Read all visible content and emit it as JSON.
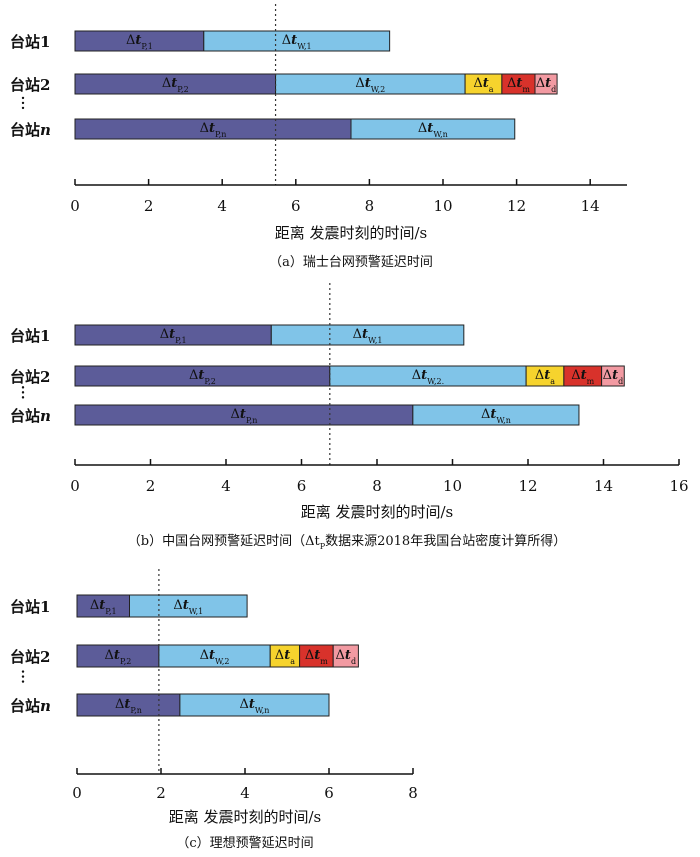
{
  "colors": {
    "p": "#5c5c99",
    "w": "#80c4e8",
    "a": "#f6d32d",
    "m": "#d8322b",
    "d": "#f29aa2",
    "stroke": "#222222"
  },
  "chart_data": [
    {
      "type": "bar",
      "orientation": "horizontal",
      "stacked": true,
      "caption": "（a）瑞士台网预警延迟时间",
      "xlabel": "距离 发震时刻的时间/s",
      "xlim": [
        0,
        15
      ],
      "xticks": [
        0,
        2,
        4,
        6,
        8,
        10,
        12,
        14
      ],
      "dotted_line_x": 5.45,
      "stations": [
        {
          "label": "台站",
          "num": "1",
          "segments": [
            {
              "kind": "p",
              "sym": "Δt",
              "sub": "P,1",
              "start": 0,
              "end": 3.5
            },
            {
              "kind": "w",
              "sym": "Δt",
              "sub": "W,1",
              "start": 3.5,
              "end": 8.55
            }
          ]
        },
        {
          "label": "台站",
          "num": "2",
          "segments": [
            {
              "kind": "p",
              "sym": "Δt",
              "sub": "P,2",
              "start": 0,
              "end": 5.45
            },
            {
              "kind": "w",
              "sym": "Δt",
              "sub": "W,2",
              "start": 5.45,
              "end": 10.6
            },
            {
              "kind": "a",
              "sym": "Δt",
              "sub": "a",
              "start": 10.6,
              "end": 11.6
            },
            {
              "kind": "m",
              "sym": "Δt",
              "sub": "m",
              "start": 11.6,
              "end": 12.5
            },
            {
              "kind": "d",
              "sym": "Δt",
              "sub": "d",
              "start": 12.5,
              "end": 13.1
            }
          ]
        },
        {
          "label": "台站",
          "num": "n",
          "segments": [
            {
              "kind": "p",
              "sym": "Δt",
              "sub": "P,n",
              "start": 0,
              "end": 7.5
            },
            {
              "kind": "w",
              "sym": "Δt",
              "sub": "W,n",
              "start": 7.5,
              "end": 11.95
            }
          ]
        }
      ]
    },
    {
      "type": "bar",
      "orientation": "horizontal",
      "stacked": true,
      "caption": "（b）中国台网预警延迟时间（Δt",
      "caption_sub": "P",
      "caption_tail": "数据来源2018年我国台站密度计算所得）",
      "xlabel": "距离 发震时刻的时间/s",
      "xlim": [
        0,
        16
      ],
      "xticks": [
        0,
        2,
        4,
        6,
        8,
        10,
        12,
        14,
        16
      ],
      "dotted_line_x": 6.75,
      "stations": [
        {
          "label": "台站",
          "num": "1",
          "segments": [
            {
              "kind": "p",
              "sym": "Δt",
              "sub": "P,1",
              "start": 0,
              "end": 5.2
            },
            {
              "kind": "w",
              "sym": "Δt",
              "sub": "W,1",
              "start": 5.2,
              "end": 10.3
            }
          ]
        },
        {
          "label": "台站",
          "num": "2",
          "segments": [
            {
              "kind": "p",
              "sym": "Δt",
              "sub": "P,2",
              "start": 0,
              "end": 6.75
            },
            {
              "kind": "w",
              "sym": "Δt",
              "sub": "W,2.",
              "start": 6.75,
              "end": 11.95
            },
            {
              "kind": "a",
              "sym": "Δt",
              "sub": "a",
              "start": 11.95,
              "end": 12.95
            },
            {
              "kind": "m",
              "sym": "Δt",
              "sub": "m",
              "start": 12.95,
              "end": 13.95
            },
            {
              "kind": "d",
              "sym": "Δt",
              "sub": "d",
              "start": 13.95,
              "end": 14.55
            }
          ]
        },
        {
          "label": "台站",
          "num": "n",
          "segments": [
            {
              "kind": "p",
              "sym": "Δt",
              "sub": "P,n",
              "start": 0,
              "end": 8.95
            },
            {
              "kind": "w",
              "sym": "Δt",
              "sub": "W,n",
              "start": 8.95,
              "end": 13.35
            }
          ]
        }
      ]
    },
    {
      "type": "bar",
      "orientation": "horizontal",
      "stacked": true,
      "caption": "（c）理想预警延迟时间",
      "xlabel": "距离 发震时刻的时间/s",
      "xlim": [
        0,
        8
      ],
      "xticks": [
        0,
        2,
        4,
        6,
        8
      ],
      "dotted_line_x": 1.95,
      "stations": [
        {
          "label": "台站",
          "num": "1",
          "segments": [
            {
              "kind": "p",
              "sym": "Δt",
              "sub": "P,1",
              "start": 0,
              "end": 1.25
            },
            {
              "kind": "w",
              "sym": "Δt",
              "sub": "W,1",
              "start": 1.25,
              "end": 4.05
            }
          ]
        },
        {
          "label": "台站",
          "num": "2",
          "segments": [
            {
              "kind": "p",
              "sym": "Δt",
              "sub": "P,2",
              "start": 0,
              "end": 1.95
            },
            {
              "kind": "w",
              "sym": "Δt",
              "sub": "W,2",
              "start": 1.95,
              "end": 4.6
            },
            {
              "kind": "a",
              "sym": "Δt",
              "sub": "a",
              "start": 4.6,
              "end": 5.3
            },
            {
              "kind": "m",
              "sym": "Δt",
              "sub": "m",
              "start": 5.3,
              "end": 6.1
            },
            {
              "kind": "d",
              "sym": "Δt",
              "sub": "d",
              "start": 6.1,
              "end": 6.7
            }
          ]
        },
        {
          "label": "台站",
          "num": "n",
          "segments": [
            {
              "kind": "p",
              "sym": "Δt",
              "sub": "P,n",
              "start": 0,
              "end": 2.45
            },
            {
              "kind": "w",
              "sym": "Δt",
              "sub": "W,n",
              "start": 2.45,
              "end": 6.0
            }
          ]
        }
      ]
    }
  ]
}
